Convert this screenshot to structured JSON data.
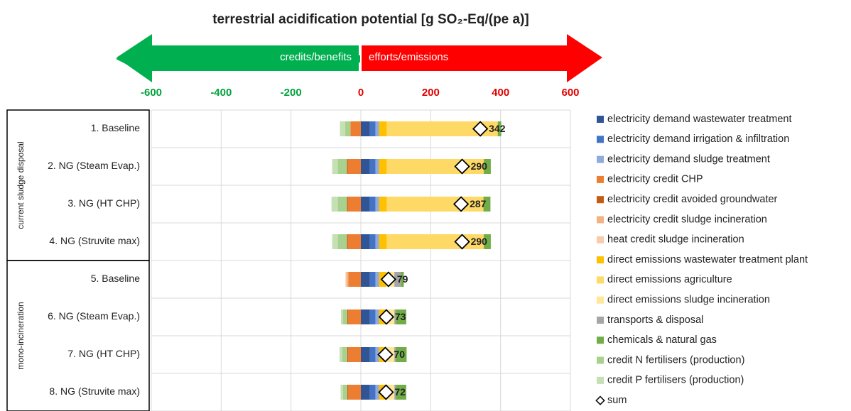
{
  "chart_data": {
    "type": "stacked-bar-horizontal",
    "title": "terrestrial acidification potential [g SO₂-Eq/(pe a)]",
    "arrow_left": "credits/benefits",
    "arrow_right": "efforts/emissions",
    "groups": [
      {
        "label": "current sludge disposal",
        "start": 0,
        "count": 4
      },
      {
        "label": "mono-incineration",
        "start": 4,
        "count": 4
      }
    ],
    "categories": [
      "1. Baseline",
      "2. NG (Steam Evap.)",
      "3. NG (HT CHP)",
      "4. NG (Struvite max)",
      "5. Baseline",
      "6. NG (Steam Evap.)",
      "7. NG (HT CHP)",
      "8. NG (Struvite max)"
    ],
    "xlim": [
      -600,
      600
    ],
    "xticks": [
      -600,
      -400,
      -200,
      0,
      200,
      400,
      600
    ],
    "negative_tick_color": "#00A33D",
    "positive_tick_color": "#E00000",
    "grid": true,
    "series": [
      {
        "name": "electricity demand wastewater treatment",
        "color": "#2F5597",
        "values": [
          26,
          26,
          26,
          26,
          26,
          26,
          26,
          26
        ]
      },
      {
        "name": "electricity demand irrigation & infiltration",
        "color": "#4472C4",
        "values": [
          16,
          16,
          16,
          16,
          16,
          16,
          16,
          16
        ]
      },
      {
        "name": "electricity demand sludge treatment",
        "color": "#8FAADC",
        "values": [
          10,
          10,
          10,
          10,
          10,
          10,
          10,
          10
        ]
      },
      {
        "name": "electricity credit CHP",
        "color": "#ED7D31",
        "values": [
          -30,
          -37,
          -37,
          -37,
          -36,
          -36,
          -36,
          -36
        ]
      },
      {
        "name": "electricity credit avoided groundwater",
        "color": "#C55A11",
        "values": [
          0,
          -3,
          -3,
          -3,
          0,
          -3,
          -3,
          -3
        ]
      },
      {
        "name": "electricity credit sludge incineration",
        "color": "#F4B183",
        "values": [
          0,
          0,
          0,
          0,
          -5,
          0,
          0,
          0
        ]
      },
      {
        "name": "heat credit sludge incineration",
        "color": "#F8CBAD",
        "values": [
          0,
          0,
          0,
          0,
          -3,
          0,
          0,
          0
        ]
      },
      {
        "name": "direct emissions wastewater treatment plant",
        "color": "#FFC000",
        "values": [
          22,
          22,
          22,
          22,
          20,
          20,
          20,
          20
        ]
      },
      {
        "name": "direct emissions agriculture",
        "color": "#FFD966",
        "values": [
          318,
          278,
          277,
          278,
          0,
          0,
          0,
          0
        ]
      },
      {
        "name": "direct emissions sludge incineration",
        "color": "#FFE699",
        "values": [
          0,
          0,
          0,
          0,
          24,
          24,
          24,
          24
        ]
      },
      {
        "name": "transports & disposal",
        "color": "#A5A5A5",
        "values": [
          0,
          0,
          0,
          0,
          19,
          4,
          4,
          4
        ]
      },
      {
        "name": "chemicals & natural gas",
        "color": "#70AD47",
        "values": [
          10,
          20,
          20,
          20,
          8,
          30,
          31,
          30
        ]
      },
      {
        "name": "credit N fertilisers (production)",
        "color": "#A9D18E",
        "values": [
          -15,
          -26,
          -26,
          -26,
          0,
          -12,
          -14,
          -12
        ]
      },
      {
        "name": "credit P fertilisers (production)",
        "color": "#C5E0B4",
        "values": [
          -15,
          -16,
          -18,
          -16,
          0,
          -6,
          -8,
          -7
        ]
      }
    ],
    "sum": {
      "name": "sum",
      "values": [
        342,
        290,
        287,
        290,
        79,
        73,
        70,
        72
      ]
    }
  }
}
